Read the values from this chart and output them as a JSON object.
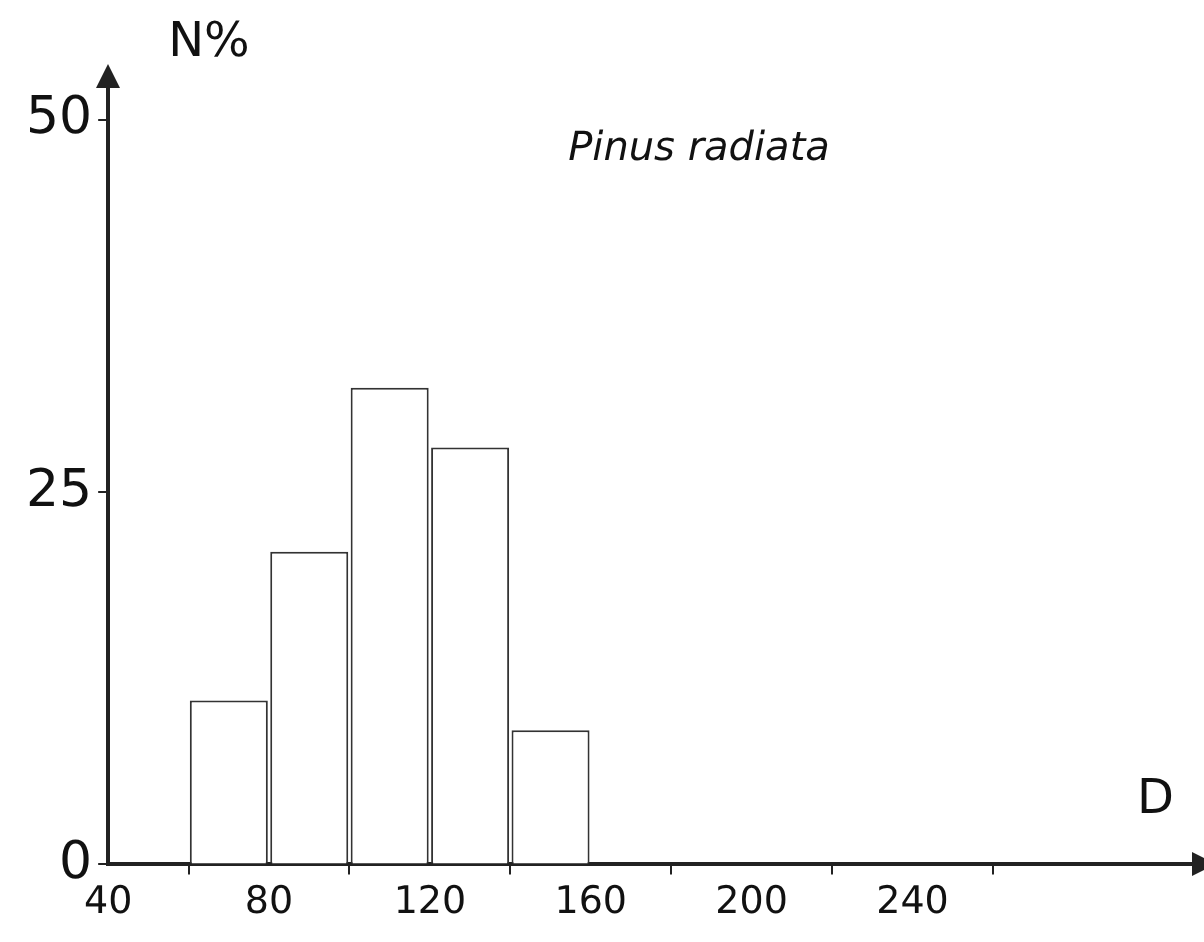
{
  "chart_data": {
    "type": "histogram",
    "xlabel": "D",
    "ylabel": "N%",
    "annotations": [
      "Pinus radiata"
    ],
    "bins": [
      60,
      80,
      100,
      120,
      140,
      160
    ],
    "values": [
      11,
      21,
      32,
      28,
      9
    ],
    "color": "#ffffff",
    "xlim": [
      40,
      310
    ],
    "xticks": [
      40,
      80,
      120,
      160,
      200,
      240
    ],
    "ylim": [
      0,
      52
    ],
    "yticks": [
      0,
      25,
      50
    ],
    "grid": false,
    "legend": false
  }
}
